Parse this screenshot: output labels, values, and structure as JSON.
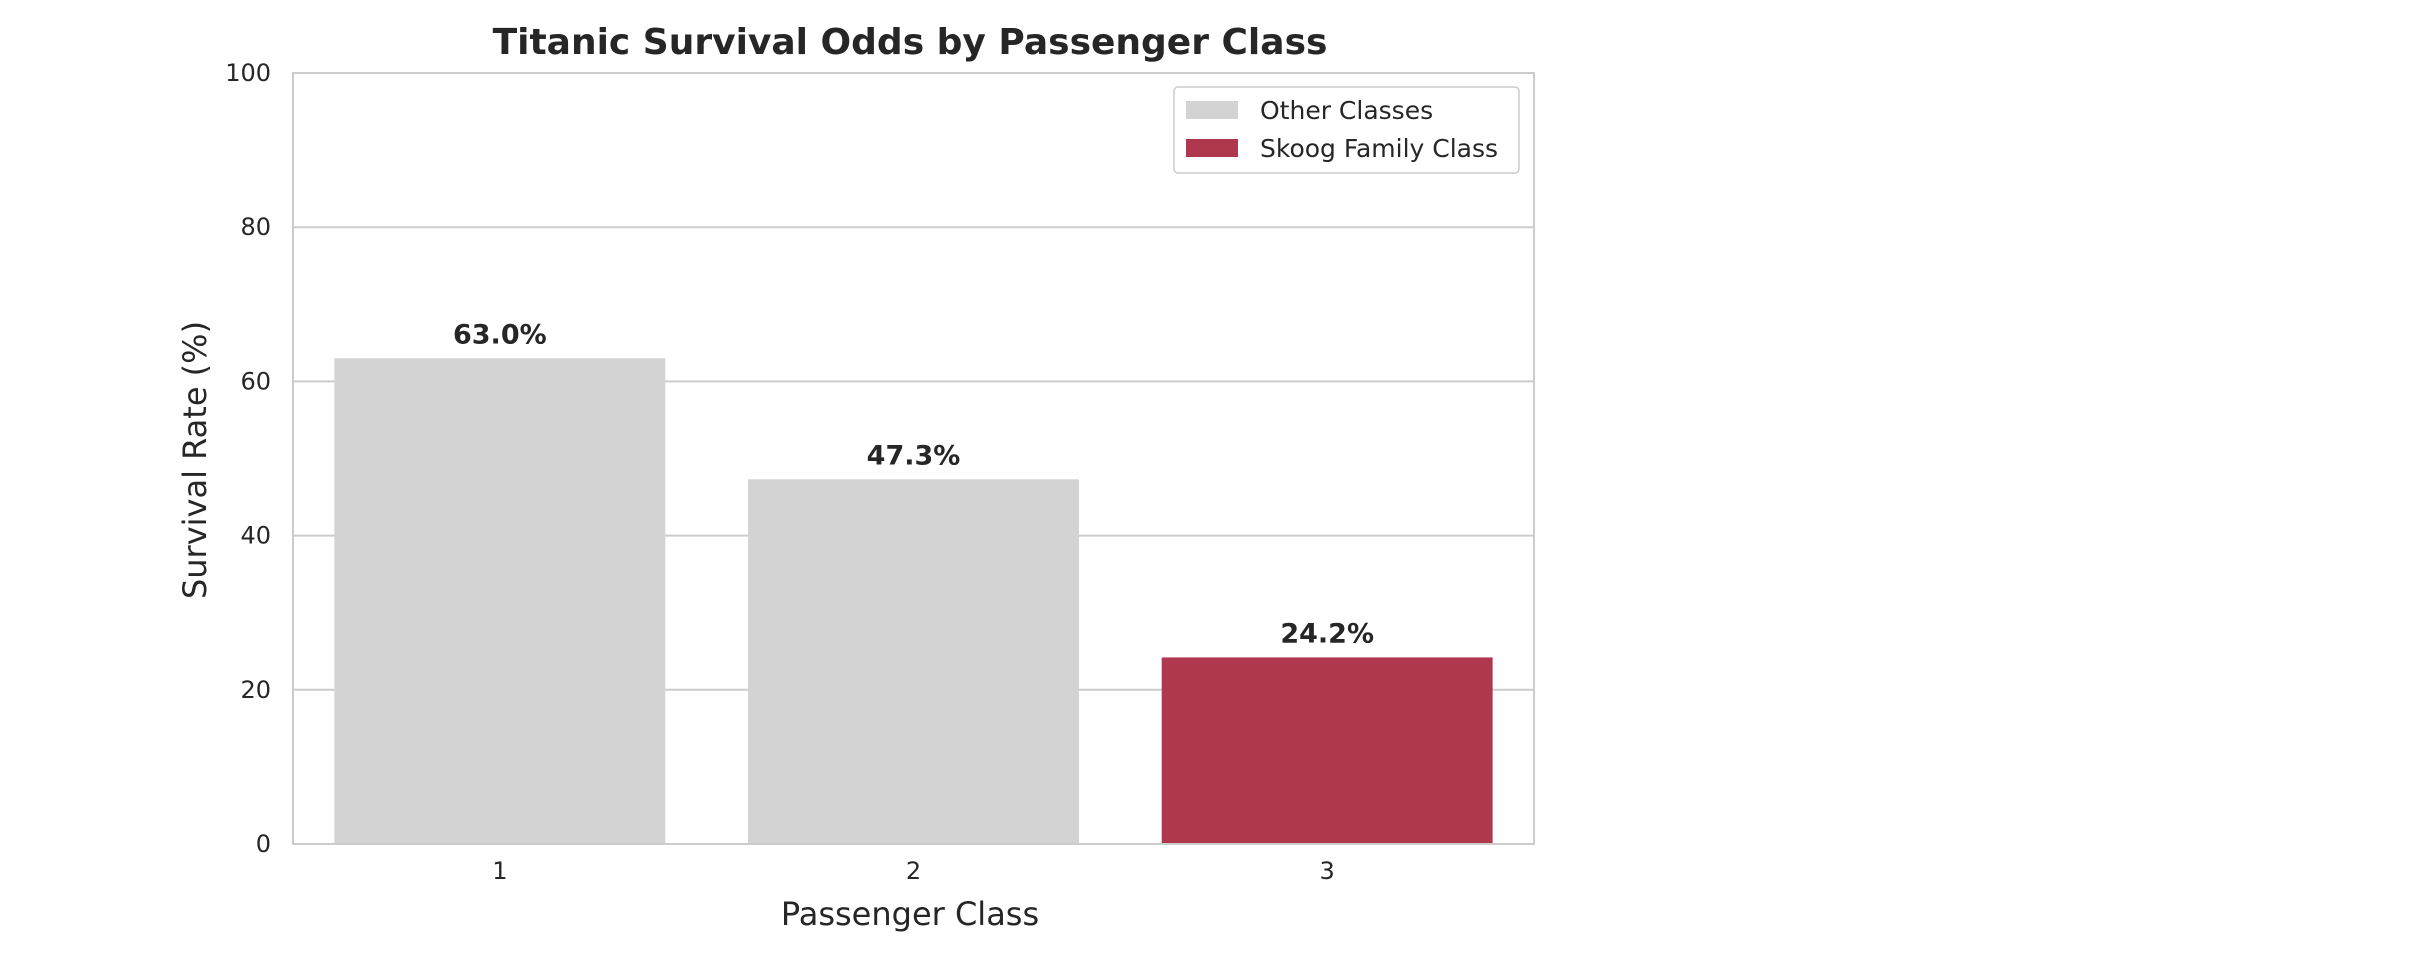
{
  "chart_data": {
    "type": "bar",
    "title": "Titanic Survival Odds by Passenger Class",
    "xlabel": "Passenger Class",
    "ylabel": "Survival Rate (%)",
    "categories": [
      "1",
      "2",
      "3"
    ],
    "values": [
      63.0,
      47.3,
      24.2
    ],
    "data_labels": [
      "63.0%",
      "47.3%",
      "24.2%"
    ],
    "bar_colors": [
      "#d3d3d3",
      "#d3d3d3",
      "#b0384e"
    ],
    "ylim": [
      0,
      100
    ],
    "yticks": [
      0,
      20,
      40,
      60,
      80,
      100
    ],
    "grid": "horizontal",
    "legend": {
      "placement": "upper right",
      "entries": [
        {
          "label": "Other Classes",
          "color": "#d3d3d3"
        },
        {
          "label": "Skoog Family Class",
          "color": "#b0384e"
        }
      ]
    }
  }
}
